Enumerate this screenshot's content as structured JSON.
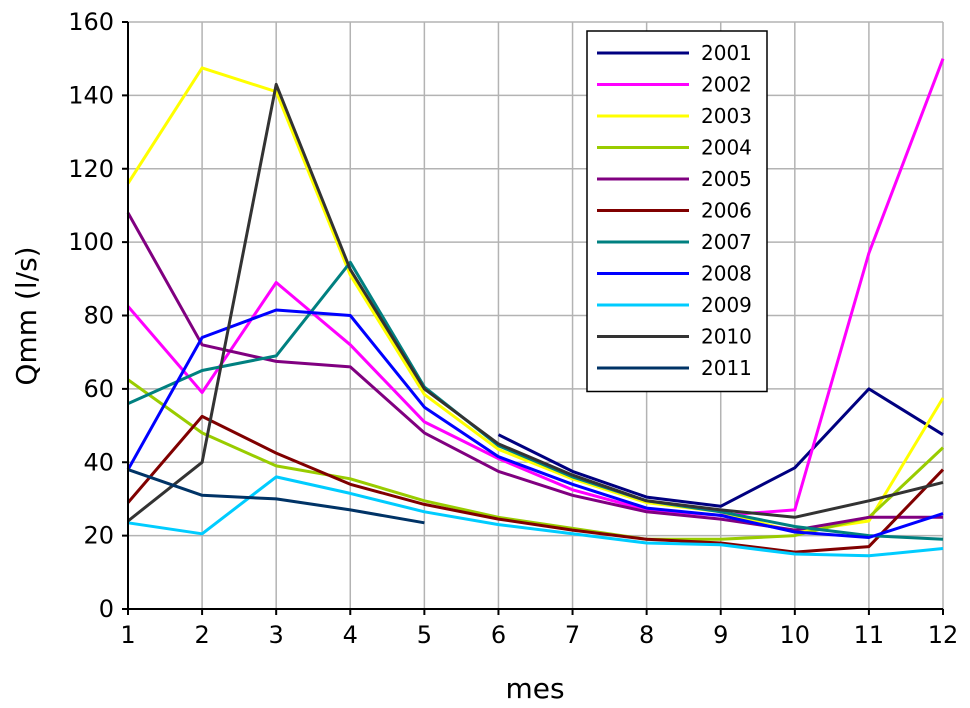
{
  "chart_data": {
    "type": "line",
    "xlabel": "mes",
    "ylabel": "Qmm (l/s)",
    "xlim": [
      1,
      12
    ],
    "ylim": [
      0,
      160
    ],
    "x_ticks": [
      1,
      2,
      3,
      4,
      5,
      6,
      7,
      8,
      9,
      10,
      11,
      12
    ],
    "y_ticks": [
      0,
      20,
      40,
      60,
      80,
      100,
      120,
      140,
      160
    ],
    "grid": true,
    "legend_position": "top-right",
    "x": [
      1,
      2,
      3,
      4,
      5,
      6,
      7,
      8,
      9,
      10,
      11,
      12
    ],
    "series": [
      {
        "name": "2001",
        "color": "#000080",
        "values": [
          null,
          null,
          null,
          null,
          null,
          47.5,
          37.5,
          30.5,
          28,
          38.5,
          60,
          47.5
        ]
      },
      {
        "name": "2002",
        "color": "#ff00ff",
        "values": [
          82.5,
          59,
          89,
          72,
          51,
          41,
          32.5,
          27,
          25.5,
          27,
          97,
          150
        ]
      },
      {
        "name": "2003",
        "color": "#ffff00",
        "values": [
          116,
          147.5,
          141,
          91,
          58.5,
          43.5,
          35.5,
          29,
          26.5,
          21,
          24,
          57.5
        ]
      },
      {
        "name": "2004",
        "color": "#99cc00",
        "values": [
          62.5,
          48,
          39,
          35.5,
          29.5,
          25,
          22,
          19,
          19,
          20,
          25,
          44
        ]
      },
      {
        "name": "2005",
        "color": "#800080",
        "values": [
          108,
          72,
          67.5,
          66,
          48,
          37.5,
          31,
          26.5,
          24.5,
          21.5,
          25,
          25
        ]
      },
      {
        "name": "2006",
        "color": "#800000",
        "values": [
          29,
          52.5,
          42.5,
          34,
          28.5,
          24.5,
          21.5,
          19,
          18,
          15.5,
          17,
          38
        ]
      },
      {
        "name": "2007",
        "color": "#008080",
        "values": [
          56,
          65,
          69,
          94.5,
          60.5,
          44.5,
          36,
          29.5,
          26.5,
          22.5,
          20,
          19
        ]
      },
      {
        "name": "2008",
        "color": "#0000ff",
        "values": [
          38,
          74,
          81.5,
          80,
          55,
          41.5,
          34,
          27.5,
          25.5,
          21,
          19.5,
          26
        ]
      },
      {
        "name": "2009",
        "color": "#00ccff",
        "values": [
          23.5,
          20.5,
          36,
          31.5,
          26.5,
          23,
          20.5,
          18,
          17.5,
          15,
          14.5,
          16.5
        ]
      },
      {
        "name": "2010",
        "color": "#333333",
        "values": [
          24,
          40,
          143,
          92.5,
          60,
          45,
          36.5,
          29.5,
          27,
          25,
          29.5,
          34.5
        ]
      },
      {
        "name": "2011",
        "color": "#003366",
        "values": [
          38,
          31,
          30,
          27,
          23.5,
          null,
          null,
          null,
          null,
          null,
          null,
          null
        ]
      }
    ]
  }
}
